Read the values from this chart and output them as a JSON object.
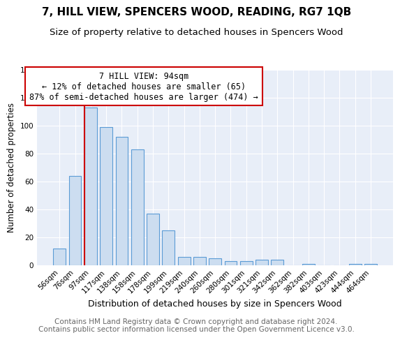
{
  "title": "7, HILL VIEW, SPENCERS WOOD, READING, RG7 1QB",
  "subtitle": "Size of property relative to detached houses in Spencers Wood",
  "xlabel": "Distribution of detached houses by size in Spencers Wood",
  "ylabel": "Number of detached properties",
  "categories": [
    "56sqm",
    "76sqm",
    "97sqm",
    "117sqm",
    "138sqm",
    "158sqm",
    "178sqm",
    "199sqm",
    "219sqm",
    "240sqm",
    "260sqm",
    "280sqm",
    "301sqm",
    "321sqm",
    "342sqm",
    "362sqm",
    "382sqm",
    "403sqm",
    "423sqm",
    "444sqm",
    "464sqm"
  ],
  "values": [
    12,
    64,
    113,
    99,
    92,
    83,
    37,
    25,
    6,
    6,
    5,
    3,
    3,
    4,
    4,
    0,
    1,
    0,
    0,
    1,
    1
  ],
  "bar_color": "#ccddf0",
  "bar_edge_color": "#5b9bd5",
  "red_line_index": 2,
  "annotation_line1": "7 HILL VIEW: 94sqm",
  "annotation_line2": "← 12% of detached houses are smaller (65)",
  "annotation_line3": "87% of semi-detached houses are larger (474) →",
  "annotation_box_facecolor": "#ffffff",
  "annotation_box_edgecolor": "#cc0000",
  "red_line_color": "#cc0000",
  "ylim": [
    0,
    140
  ],
  "yticks": [
    0,
    20,
    40,
    60,
    80,
    100,
    120,
    140
  ],
  "figure_facecolor": "#ffffff",
  "plot_facecolor": "#e8eef8",
  "grid_color": "#ffffff",
  "title_fontsize": 11,
  "subtitle_fontsize": 9.5,
  "xlabel_fontsize": 9,
  "ylabel_fontsize": 8.5,
  "tick_fontsize": 7.5,
  "annotation_fontsize": 8.5,
  "footer_fontsize": 7.5,
  "footer_line1": "Contains HM Land Registry data © Crown copyright and database right 2024.",
  "footer_line2": "Contains public sector information licensed under the Open Government Licence v3.0."
}
